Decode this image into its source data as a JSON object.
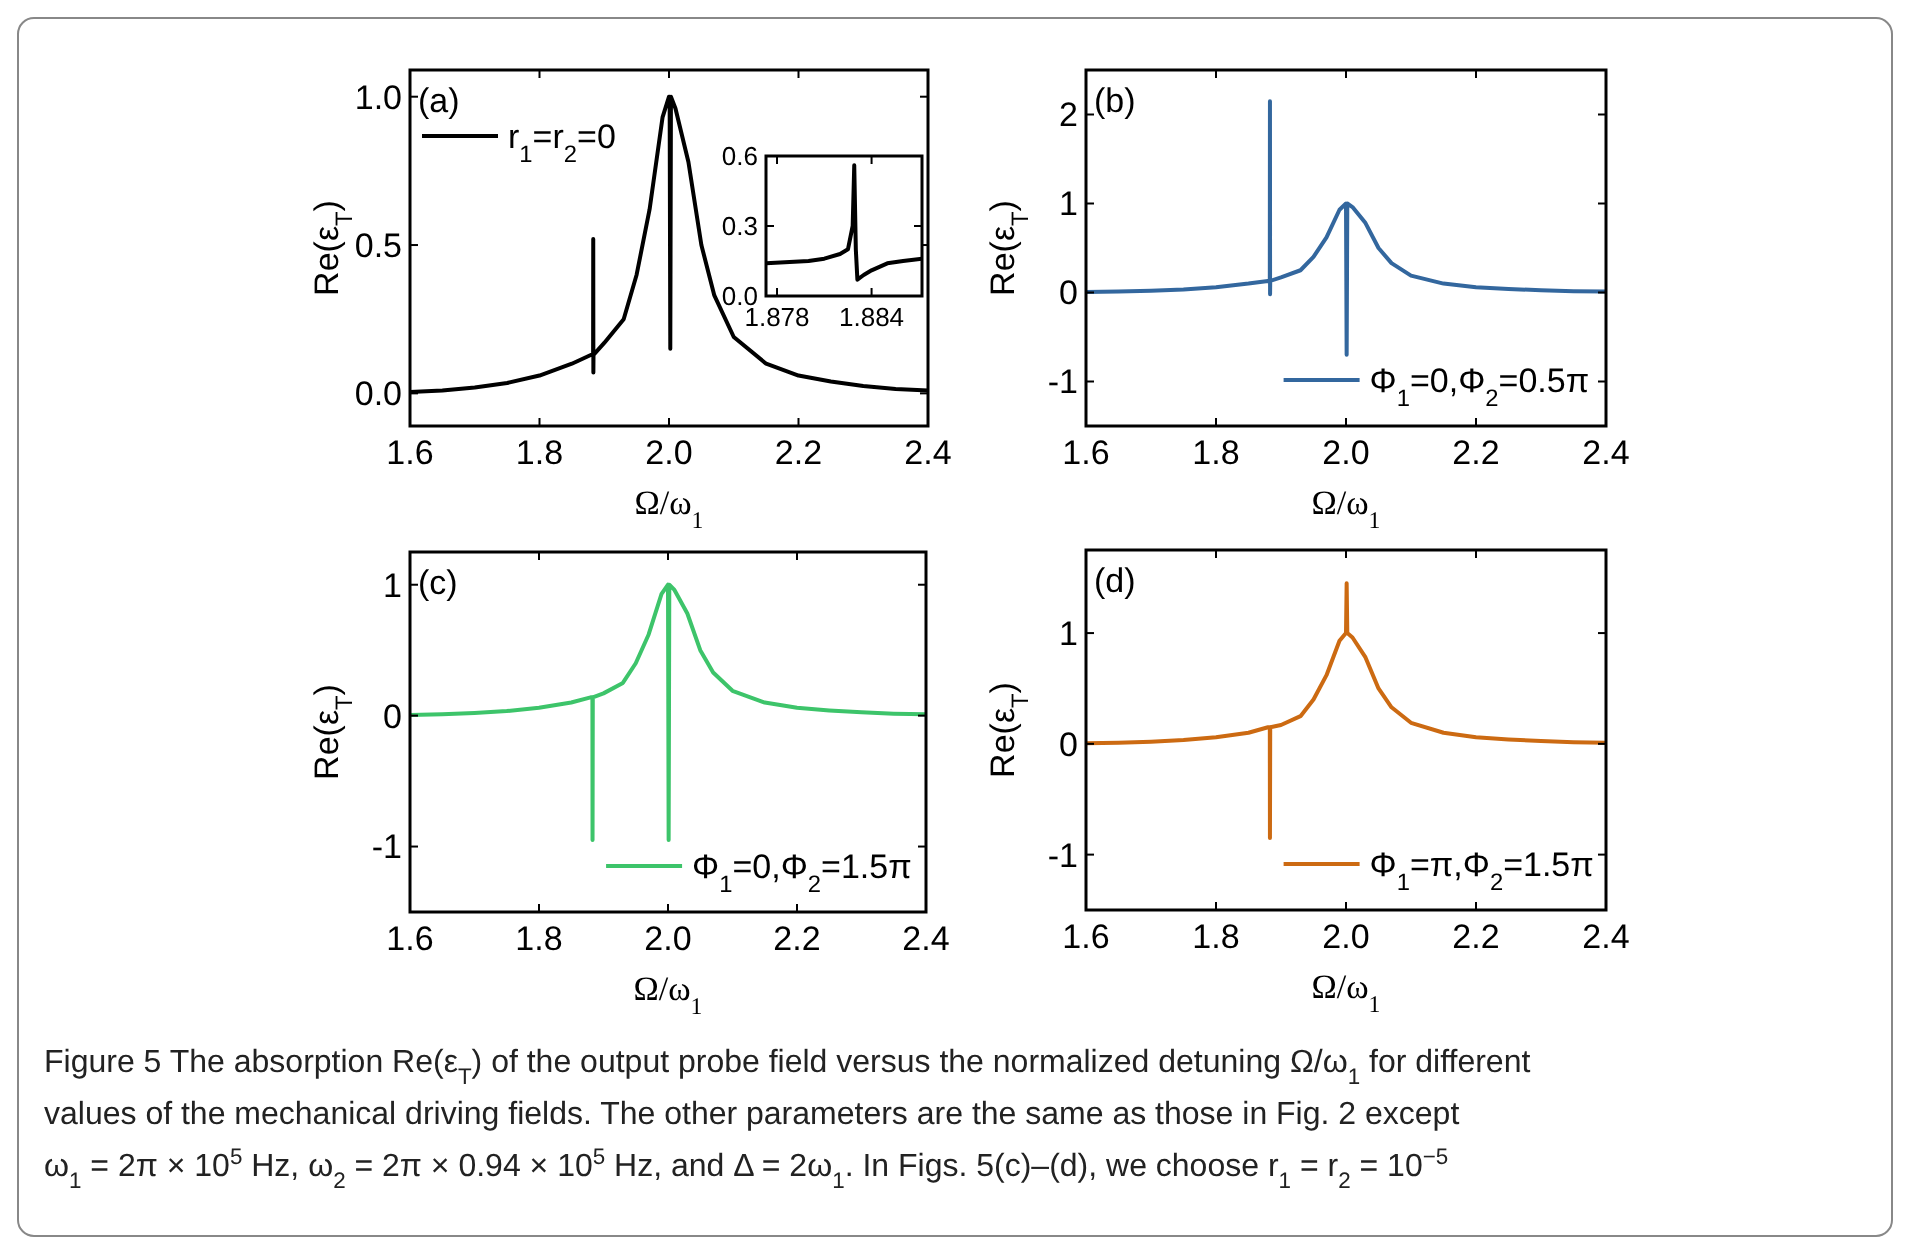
{
  "chart_data": [
    {
      "type": "line",
      "title": "(a)",
      "xlabel": "Ω/ω$_{1}$",
      "ylabel": "Re(ε$_{T}$)",
      "xlim": [
        1.6,
        2.4
      ],
      "xticks": [
        {
          "value": 1.6,
          "label": "1.6"
        },
        {
          "value": 1.8,
          "label": "1.8"
        },
        {
          "value": 2.0,
          "label": "2.0"
        },
        {
          "value": 2.2,
          "label": "2.2"
        },
        {
          "value": 2.4,
          "label": "2.4"
        }
      ],
      "ylim": [
        -0.11,
        1.09
      ],
      "yticks": [
        {
          "value": 0,
          "label": "0.0"
        },
        {
          "value": 0.5,
          "label": "0.5"
        },
        {
          "value": 1,
          "label": "1.0"
        }
      ],
      "legend": "top left",
      "line_style": "solid",
      "x": [
        1.6,
        1.65,
        1.7,
        1.75,
        1.8,
        1.85,
        1.88,
        1.8828,
        1.883,
        1.8832,
        1.8834,
        1.9,
        1.93,
        1.95,
        1.97,
        1.99,
        2.0,
        2.001,
        2.002,
        2.003,
        2.01,
        2.03,
        2.05,
        2.07,
        2.1,
        2.15,
        2.2,
        2.25,
        2.3,
        2.35,
        2.4
      ],
      "series": [
        {
          "name": "r$_{1}$=r$_{2}$=0",
          "color": "#000000",
          "values": [
            0.005,
            0.01,
            0.02,
            0.035,
            0.06,
            0.1,
            0.13,
            0.13,
            0.52,
            0.07,
            0.13,
            0.17,
            0.25,
            0.4,
            0.62,
            0.93,
            1.0,
            1.0,
            0.15,
            1.0,
            0.96,
            0.78,
            0.5,
            0.33,
            0.19,
            0.1,
            0.06,
            0.04,
            0.025,
            0.015,
            0.01
          ]
        }
      ],
      "annotations": [
        "Figure 5  The absorption Re(ε$_{T}$) of the output probe field versus the normalized detuning Ω/ω$_{1}$ for different",
        "values of the mechanical driving fields. The other parameters are the same as those in Fig. 2 except",
        "ω$_{1}$ = 2π × 10$^{5}$ Hz, ω$_{2}$ = 2π × 0.94 × 10$^{5}$ Hz, and Δ = 2ω$_{1}$. In Figs. 5(c)–(d), we choose r$_{1}$ = r$_{2}$ = 10$^{−5}$"
      ]
    },
    {
      "type": "line",
      "xlim": [
        1.8773,
        1.8872
      ],
      "xticks": [
        1.878,
        1.884
      ],
      "ylim": [
        0,
        0.6
      ],
      "yticks": [
        {
          "value": 0,
          "label": "0.0"
        },
        0.3,
        0.6
      ],
      "line_style": "solid",
      "x": [
        1.8773,
        1.8785,
        1.88,
        1.881,
        1.882,
        1.8825,
        1.8828,
        1.8829,
        1.883,
        1.8831,
        1.8835,
        1.884,
        1.885,
        1.886,
        1.8872
      ],
      "series": [
        {
          "color": "#000000",
          "values": [
            0.14,
            0.145,
            0.15,
            0.16,
            0.18,
            0.2,
            0.3,
            0.56,
            0.2,
            0.07,
            0.09,
            0.11,
            0.14,
            0.15,
            0.16
          ]
        }
      ]
    },
    {
      "type": "line",
      "title": "(b)",
      "xlabel": "Ω/ω$_{1}$",
      "ylabel": "Re(ε$_{T}$)",
      "xlim": [
        1.6,
        2.4
      ],
      "xticks": [
        {
          "value": 1.6,
          "label": "1.6"
        },
        {
          "value": 1.8,
          "label": "1.8"
        },
        {
          "value": 2.0,
          "label": "2.0"
        },
        {
          "value": 2.2,
          "label": "2.2"
        },
        {
          "value": 2.4,
          "label": "2.4"
        }
      ],
      "ylim": [
        -1.5,
        2.5
      ],
      "yticks": [
        -1,
        0,
        1,
        2
      ],
      "legend": "bottom right",
      "line_style": "solid",
      "x": [
        1.6,
        1.65,
        1.7,
        1.75,
        1.8,
        1.85,
        1.88,
        1.8828,
        1.883,
        1.8832,
        1.8834,
        1.9,
        1.93,
        1.95,
        1.97,
        1.99,
        2.0,
        2.001,
        2.002,
        2.01,
        2.03,
        2.05,
        2.07,
        2.1,
        2.15,
        2.2,
        2.25,
        2.3,
        2.35,
        2.4
      ],
      "series": [
        {
          "name": "Φ$_{1}$=0,Φ$_{2}$=0.5π",
          "color": "#33679e",
          "values": [
            0.005,
            0.01,
            0.02,
            0.035,
            0.06,
            0.1,
            0.13,
            0.13,
            2.15,
            -0.02,
            0.13,
            0.17,
            0.25,
            0.4,
            0.62,
            0.93,
            1.0,
            -0.7,
            1.0,
            0.96,
            0.78,
            0.5,
            0.33,
            0.19,
            0.1,
            0.06,
            0.04,
            0.025,
            0.015,
            0.01
          ]
        }
      ]
    },
    {
      "type": "line",
      "title": "(c)",
      "xlabel": "Ω/ω$_{1}$",
      "ylabel": "Re(ε$_{T}$)",
      "xlim": [
        1.6,
        2.4
      ],
      "xticks": [
        {
          "value": 1.6,
          "label": "1.6"
        },
        {
          "value": 1.8,
          "label": "1.8"
        },
        {
          "value": 2.0,
          "label": "2.0"
        },
        {
          "value": 2.2,
          "label": "2.2"
        },
        {
          "value": 2.4,
          "label": "2.4"
        }
      ],
      "ylim": [
        -1.5,
        1.25
      ],
      "yticks": [
        -1,
        0,
        1
      ],
      "legend": "bottom right",
      "line_style": "solid",
      "x": [
        1.6,
        1.65,
        1.7,
        1.75,
        1.8,
        1.85,
        1.88,
        1.8828,
        1.883,
        1.8834,
        1.9,
        1.93,
        1.95,
        1.97,
        1.99,
        2.0,
        2.001,
        2.002,
        2.01,
        2.03,
        2.05,
        2.07,
        2.1,
        2.15,
        2.2,
        2.25,
        2.3,
        2.35,
        2.4
      ],
      "series": [
        {
          "name": "Φ$_{1}$=0,Φ$_{2}$=1.5π",
          "color": "#3dc46a",
          "values": [
            0.005,
            0.01,
            0.02,
            0.035,
            0.06,
            0.1,
            0.14,
            0.14,
            -0.95,
            0.14,
            0.17,
            0.25,
            0.4,
            0.62,
            0.93,
            1.0,
            -0.95,
            1.0,
            0.96,
            0.78,
            0.5,
            0.33,
            0.19,
            0.1,
            0.06,
            0.04,
            0.025,
            0.015,
            0.01
          ]
        }
      ]
    },
    {
      "type": "line",
      "title": "(d)",
      "xlabel": "Ω/ω$_{1}$",
      "ylabel": "Re(ε$_{T}$)",
      "xlim": [
        1.6,
        2.4
      ],
      "xticks": [
        {
          "value": 1.6,
          "label": "1.6"
        },
        {
          "value": 1.8,
          "label": "1.8"
        },
        {
          "value": 2.0,
          "label": "2.0"
        },
        {
          "value": 2.2,
          "label": "2.2"
        },
        {
          "value": 2.4,
          "label": "2.4"
        }
      ],
      "ylim": [
        -1.5,
        1.75
      ],
      "yticks": [
        -1,
        0,
        1
      ],
      "legend": "bottom right",
      "line_style": "solid",
      "x": [
        1.6,
        1.65,
        1.7,
        1.75,
        1.8,
        1.85,
        1.88,
        1.8828,
        1.883,
        1.8834,
        1.9,
        1.93,
        1.95,
        1.97,
        1.99,
        2.0,
        2.001,
        2.002,
        2.01,
        2.03,
        2.05,
        2.07,
        2.1,
        2.15,
        2.2,
        2.25,
        2.3,
        2.35,
        2.4
      ],
      "series": [
        {
          "name": "Φ$_{1}$=π,Φ$_{2}$=1.5π",
          "color": "#cc6a12",
          "values": [
            0.005,
            0.01,
            0.02,
            0.035,
            0.06,
            0.1,
            0.15,
            0.15,
            -0.85,
            0.15,
            0.17,
            0.25,
            0.4,
            0.62,
            0.93,
            1.0,
            1.45,
            1.0,
            0.96,
            0.78,
            0.5,
            0.33,
            0.19,
            0.1,
            0.06,
            0.04,
            0.025,
            0.015,
            0.01
          ]
        }
      ]
    }
  ]
}
